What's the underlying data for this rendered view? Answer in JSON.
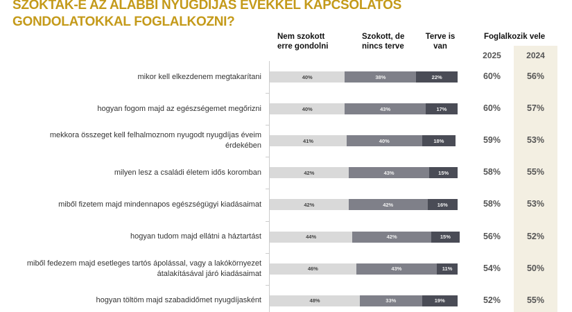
{
  "title_line1": "SZOKTAK-E AZ ALÁBBI NYUGDÍJAS ÉVEKKEL KAPCSOLATOS",
  "title_line2": "GONDOLATOKKAL FOGLALKOZNI?",
  "headers": {
    "col1": [
      "Nem szokott",
      "erre gondolni"
    ],
    "col2": [
      "Szokott, de",
      "nincs terve"
    ],
    "col3": [
      "Terve is",
      "van"
    ],
    "foglalkozik": "Foglalkozik vele",
    "year1": "2025",
    "year2": "2024"
  },
  "chart_data": {
    "type": "bar",
    "stacked": true,
    "orientation": "horizontal",
    "categories": [
      "mikor kell elkezdenem megtakarítani",
      "hogyan fogom majd az egészségemet megőrizni",
      "mekkora összeget kell felhalmoznom nyugodt nyugdíjas éveim érdekében",
      "milyen lesz a családi életem idős koromban",
      "miből fizetem majd mindennapos egészségügyi kiadásaimat",
      "hogyan tudom majd ellátni a háztartást",
      "miből fedezem majd esetleges tartós ápolással, vagy a lakókörnyezet átalakításával járó kiadásaimat",
      "hogyan töltöm majd szabadidőmet nyugdíjasként"
    ],
    "series": [
      {
        "name": "Nem szokott erre gondolni",
        "color": "#d9d9d9",
        "values": [
          40,
          40,
          41,
          42,
          42,
          44,
          46,
          48
        ]
      },
      {
        "name": "Szokott, de nincs terve",
        "color": "#7f8089",
        "values": [
          38,
          43,
          40,
          43,
          42,
          42,
          43,
          33
        ]
      },
      {
        "name": "Terve is van",
        "color": "#4a4c56",
        "values": [
          22,
          17,
          18,
          15,
          16,
          15,
          11,
          19
        ]
      }
    ],
    "foglalkozik_2025": [
      60,
      60,
      59,
      58,
      58,
      56,
      54,
      52
    ],
    "foglalkozik_2024": [
      56,
      57,
      53,
      55,
      53,
      52,
      50,
      55
    ],
    "value_suffix": "%"
  }
}
